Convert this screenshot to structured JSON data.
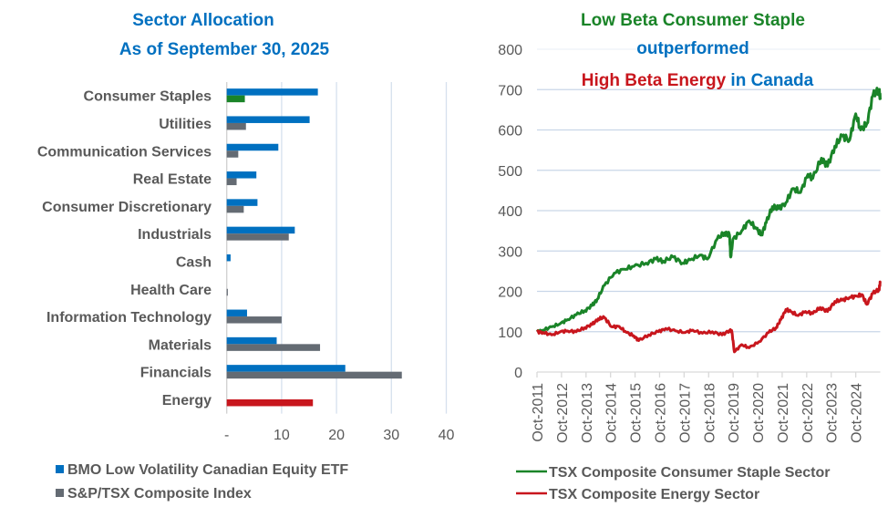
{
  "chart_data": [
    {
      "type": "bar",
      "orientation": "horizontal",
      "title": [
        "Sector Allocation",
        "As of September 30, 2025"
      ],
      "xlabel": "",
      "ylabel": "",
      "xlim": [
        0,
        40
      ],
      "x_ticks": [
        "-",
        "10",
        "20",
        "30",
        "40"
      ],
      "grid": true,
      "legend_position": "bottom",
      "categories": [
        "Consumer Staples",
        "Utilities",
        "Communication Services",
        "Real Estate",
        "Consumer Discretionary",
        "Industrials",
        "Cash",
        "Health Care",
        "Information Technology",
        "Materials",
        "Financials",
        "Energy"
      ],
      "series": [
        {
          "name": "BMO Low Volatility Canadian Equity ETF",
          "color": "#0070C0",
          "values": [
            16.6,
            15.1,
            9.4,
            5.4,
            5.6,
            12.4,
            0.7,
            0.0,
            3.7,
            9.1,
            21.6,
            0.0
          ]
        },
        {
          "name": "S&P/TSX Composite Index",
          "color": "#646B73",
          "values": [
            3.3,
            3.5,
            2.1,
            1.8,
            3.1,
            11.3,
            0.0,
            0.2,
            10.0,
            17.0,
            31.9,
            15.7
          ]
        }
      ],
      "highlights": [
        {
          "category": "Consumer Staples",
          "series": "S&P/TSX Composite Index",
          "color": "#1A8428"
        },
        {
          "category": "Energy",
          "series": "S&P/TSX Composite Index",
          "color": "#C8161D"
        }
      ]
    },
    {
      "type": "line",
      "title_lines": [
        [
          {
            "text": "Low Beta Consumer Staple",
            "color": "#1A8428"
          }
        ],
        [
          {
            "text": "outperformed",
            "color": "#0070C0"
          }
        ],
        [
          {
            "text": "High Beta Energy",
            "color": "#C8161D"
          },
          {
            "text": " in Canada",
            "color": "#0070C0"
          }
        ]
      ],
      "xlabel": "",
      "ylabel": "",
      "ylim": [
        0,
        800
      ],
      "y_ticks": [
        0,
        100,
        200,
        300,
        400,
        500,
        600,
        700,
        800
      ],
      "xlim": [
        2011.75,
        2025.75
      ],
      "x_ticks": [
        "Oct-2011",
        "Oct-2012",
        "Oct-2013",
        "Oct-2014",
        "Oct-2015",
        "Oct-2016",
        "Oct-2017",
        "Oct-2018",
        "Oct-2019",
        "Oct-2020",
        "Oct-2021",
        "Oct-2022",
        "Oct-2023",
        "Oct-2024"
      ],
      "grid": true,
      "legend_position": "bottom",
      "series": [
        {
          "name": "TSX Composite Consumer Staple Sector",
          "color": "#1A8428",
          "x": [
            2011.75,
            2012.0,
            2012.35,
            2012.7,
            2013.0,
            2013.35,
            2013.7,
            2014.0,
            2014.2,
            2014.5,
            2014.9,
            2015.3,
            2015.7,
            2016.2,
            2016.6,
            2016.9,
            2017.3,
            2017.7,
            2018.0,
            2018.4,
            2018.7,
            2019.1,
            2019.4,
            2019.6,
            2019.65,
            2019.75,
            2020.1,
            2020.4,
            2020.7,
            2020.9,
            2021.1,
            2021.35,
            2021.6,
            2021.9,
            2022.2,
            2022.5,
            2022.8,
            2023.0,
            2023.35,
            2023.6,
            2023.9,
            2024.2,
            2024.5,
            2024.75,
            2024.95,
            2025.2,
            2025.45,
            2025.7,
            2025.75
          ],
          "values": [
            100,
            104,
            112,
            120,
            130,
            142,
            152,
            165,
            180,
            215,
            245,
            255,
            262,
            270,
            280,
            275,
            285,
            270,
            278,
            290,
            280,
            330,
            345,
            340,
            285,
            330,
            350,
            375,
            355,
            340,
            370,
            410,
            405,
            420,
            455,
            445,
            490,
            480,
            530,
            510,
            560,
            585,
            575,
            640,
            600,
            615,
            685,
            700,
            675
          ]
        },
        {
          "name": "TSX Composite Energy Sector",
          "color": "#C8161D",
          "x": [
            2011.75,
            2012.0,
            2012.35,
            2012.7,
            2013.0,
            2013.35,
            2013.7,
            2014.0,
            2014.25,
            2014.5,
            2014.8,
            2015.1,
            2015.4,
            2015.7,
            2015.9,
            2016.3,
            2016.7,
            2017.0,
            2017.4,
            2017.8,
            2018.1,
            2018.5,
            2018.9,
            2019.3,
            2019.6,
            2019.7,
            2019.8,
            2020.1,
            2020.4,
            2020.8,
            2021.2,
            2021.5,
            2021.7,
            2021.9,
            2022.1,
            2022.4,
            2022.7,
            2023.0,
            2023.3,
            2023.6,
            2023.9,
            2024.2,
            2024.5,
            2024.8,
            2025.0,
            2025.2,
            2025.45,
            2025.7,
            2025.75
          ],
          "values": [
            100,
            98,
            92,
            100,
            102,
            100,
            110,
            118,
            132,
            135,
            112,
            113,
            98,
            90,
            78,
            92,
            100,
            108,
            102,
            98,
            104,
            96,
            100,
            92,
            103,
            100,
            50,
            68,
            60,
            75,
            98,
            110,
            130,
            155,
            150,
            140,
            150,
            145,
            160,
            150,
            175,
            178,
            185,
            188,
            192,
            168,
            195,
            205,
            222
          ]
        }
      ]
    }
  ]
}
